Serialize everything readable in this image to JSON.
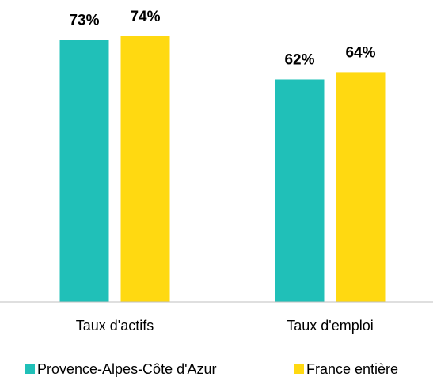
{
  "chart_data": {
    "type": "bar",
    "categories": [
      "Taux d'actifs",
      "Taux d'emploi"
    ],
    "series": [
      {
        "name": "Provence-Alpes-Côte d'Azur",
        "color": "#20c0b8",
        "values": [
          73,
          62
        ],
        "value_labels": [
          "73%",
          "62%"
        ]
      },
      {
        "name": "France entière",
        "color": "#ffd911",
        "values": [
          74,
          64
        ],
        "value_labels": [
          "74%",
          "64%"
        ]
      }
    ]
  }
}
